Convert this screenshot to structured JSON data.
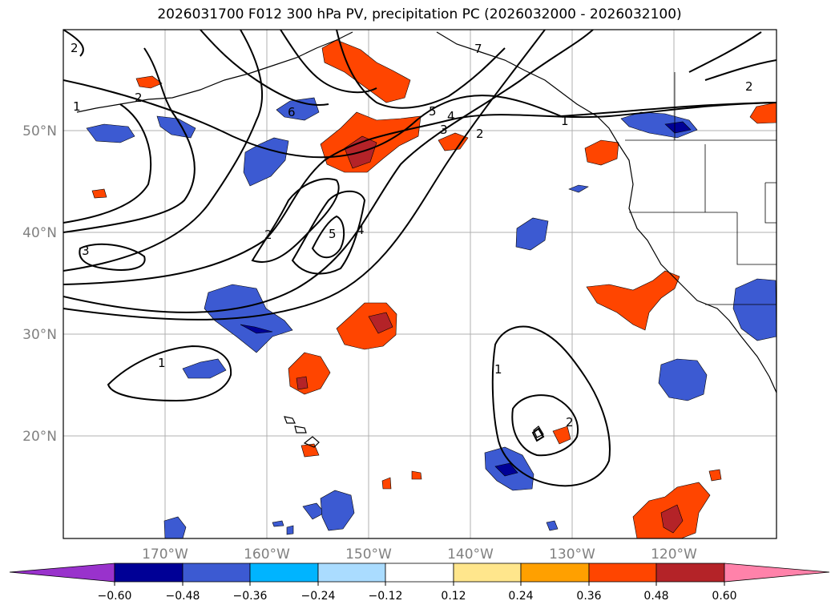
{
  "title": "2026031700 F012 300 hPa PV, precipitation PC (2026032000 - 2026032100)",
  "map": {
    "lon_labels": [
      "170°W",
      "160°W",
      "150°W",
      "140°W",
      "130°W",
      "120°W"
    ],
    "lat_labels": [
      "50°N",
      "40°N",
      "30°N",
      "20°N"
    ],
    "contour_labels": [
      "2",
      "2",
      "1",
      "6",
      "5",
      "4",
      "3",
      "2",
      "1",
      "7",
      "2",
      "2",
      "5",
      "4",
      "3",
      "1",
      "1",
      "2"
    ]
  },
  "colorbar": {
    "ticks": [
      "−0.60",
      "−0.48",
      "−0.36",
      "−0.24",
      "−0.12",
      "0.12",
      "0.24",
      "0.36",
      "0.48",
      "0.60"
    ],
    "colors": {
      "under": "#9932cc",
      "c1": "#000096",
      "c2": "#3c5ad2",
      "c3": "#00b4ff",
      "c4": "#aadcff",
      "c5": "#ffffff",
      "c6": "#ffe68c",
      "c7": "#ffa000",
      "c8": "#ff4500",
      "c9": "#b42328",
      "over": "#ff82aa"
    }
  }
}
